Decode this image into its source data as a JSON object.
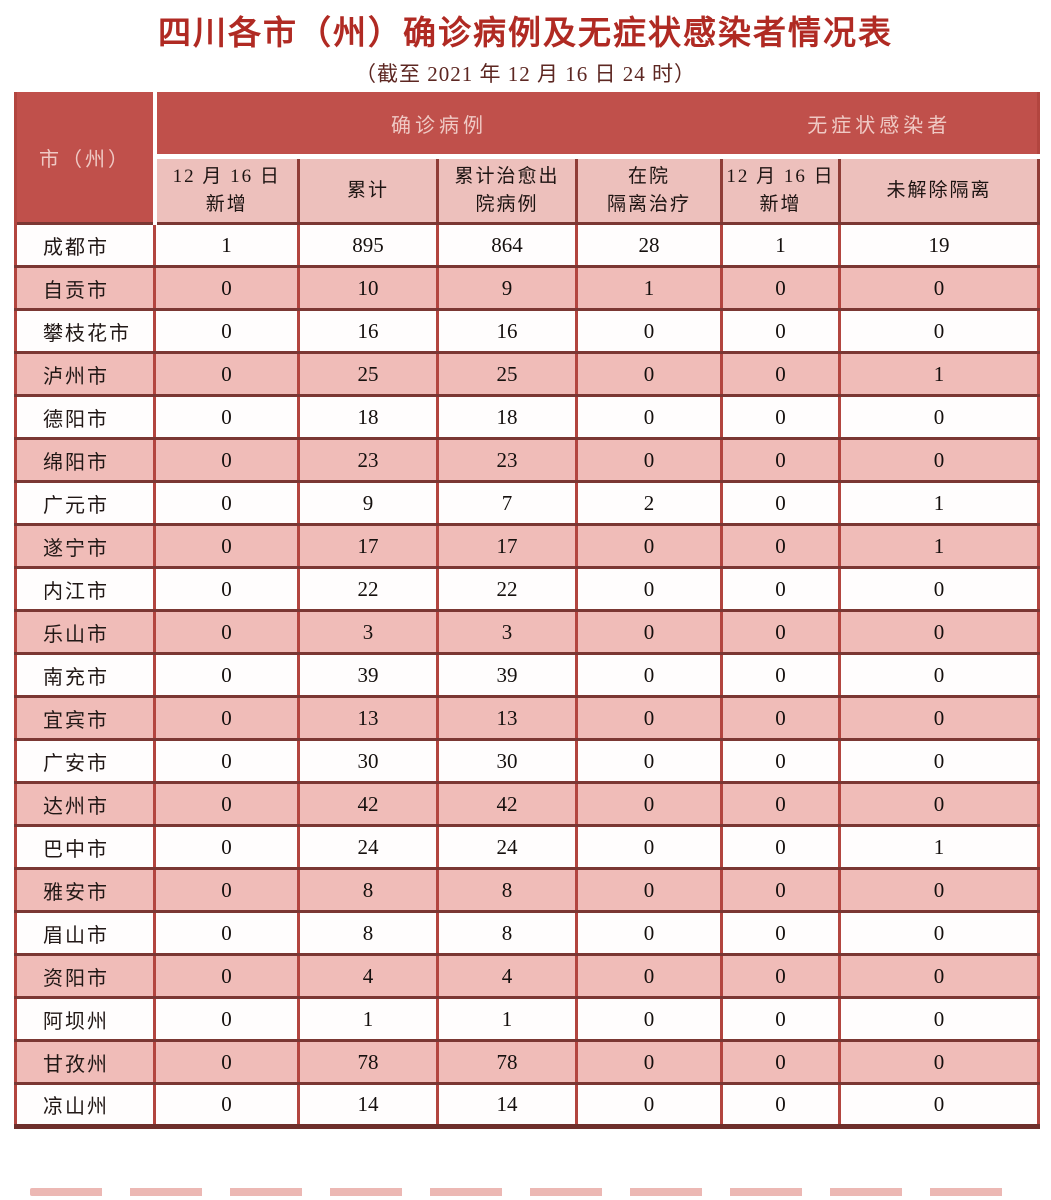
{
  "chart_data": {
    "type": "table",
    "title": "四川各市（州）确诊病例及无症状感染者情况表",
    "subtitle": "（截至 2021 年 12 月 16 日 24 时）",
    "corner_header": "市（州）",
    "column_groups": [
      {
        "label": "确诊病例",
        "span": 4
      },
      {
        "label": "无症状感染者",
        "span": 2
      }
    ],
    "column_headers_lines": [
      [
        "12 月 16 日",
        "新增"
      ],
      [
        "累计"
      ],
      [
        "累计治愈出",
        "院病例"
      ],
      [
        "在院",
        "隔离治疗"
      ],
      [
        "12 月 16 日",
        "新增"
      ],
      [
        "未解除隔离"
      ]
    ],
    "rows": [
      {
        "city": "成都市",
        "values": [
          1,
          895,
          864,
          28,
          1,
          19
        ]
      },
      {
        "city": "自贡市",
        "values": [
          0,
          10,
          9,
          1,
          0,
          0
        ]
      },
      {
        "city": "攀枝花市",
        "values": [
          0,
          16,
          16,
          0,
          0,
          0
        ]
      },
      {
        "city": "泸州市",
        "values": [
          0,
          25,
          25,
          0,
          0,
          1
        ]
      },
      {
        "city": "德阳市",
        "values": [
          0,
          18,
          18,
          0,
          0,
          0
        ]
      },
      {
        "city": "绵阳市",
        "values": [
          0,
          23,
          23,
          0,
          0,
          0
        ]
      },
      {
        "city": "广元市",
        "values": [
          0,
          9,
          7,
          2,
          0,
          1
        ]
      },
      {
        "city": "遂宁市",
        "values": [
          0,
          17,
          17,
          0,
          0,
          1
        ]
      },
      {
        "city": "内江市",
        "values": [
          0,
          22,
          22,
          0,
          0,
          0
        ]
      },
      {
        "city": "乐山市",
        "values": [
          0,
          3,
          3,
          0,
          0,
          0
        ]
      },
      {
        "city": "南充市",
        "values": [
          0,
          39,
          39,
          0,
          0,
          0
        ]
      },
      {
        "city": "宜宾市",
        "values": [
          0,
          13,
          13,
          0,
          0,
          0
        ]
      },
      {
        "city": "广安市",
        "values": [
          0,
          30,
          30,
          0,
          0,
          0
        ]
      },
      {
        "city": "达州市",
        "values": [
          0,
          42,
          42,
          0,
          0,
          0
        ]
      },
      {
        "city": "巴中市",
        "values": [
          0,
          24,
          24,
          0,
          0,
          1
        ]
      },
      {
        "city": "雅安市",
        "values": [
          0,
          8,
          8,
          0,
          0,
          0
        ]
      },
      {
        "city": "眉山市",
        "values": [
          0,
          8,
          8,
          0,
          0,
          0
        ]
      },
      {
        "city": "资阳市",
        "values": [
          0,
          4,
          4,
          0,
          0,
          0
        ]
      },
      {
        "city": "阿坝州",
        "values": [
          0,
          1,
          1,
          0,
          0,
          0
        ]
      },
      {
        "city": "甘孜州",
        "values": [
          0,
          78,
          78,
          0,
          0,
          0
        ]
      },
      {
        "city": "凉山州",
        "values": [
          0,
          14,
          14,
          0,
          0,
          0
        ]
      }
    ],
    "layout": {
      "row_stripes": [
        "white",
        "pink"
      ],
      "legend_position": "none",
      "grid": true
    },
    "colors": {
      "title_red": "#b02a23",
      "subtitle_maroon": "#5d2722",
      "header_band_red": "#c0504b",
      "header_band_text": "#efc9c4",
      "subheader_pink": "#edc0bc",
      "row_pink": "#f0bcb8",
      "row_white": "#fffdfd",
      "vertical_border": "#b2453f",
      "horizontal_border": "#7b3733"
    }
  }
}
